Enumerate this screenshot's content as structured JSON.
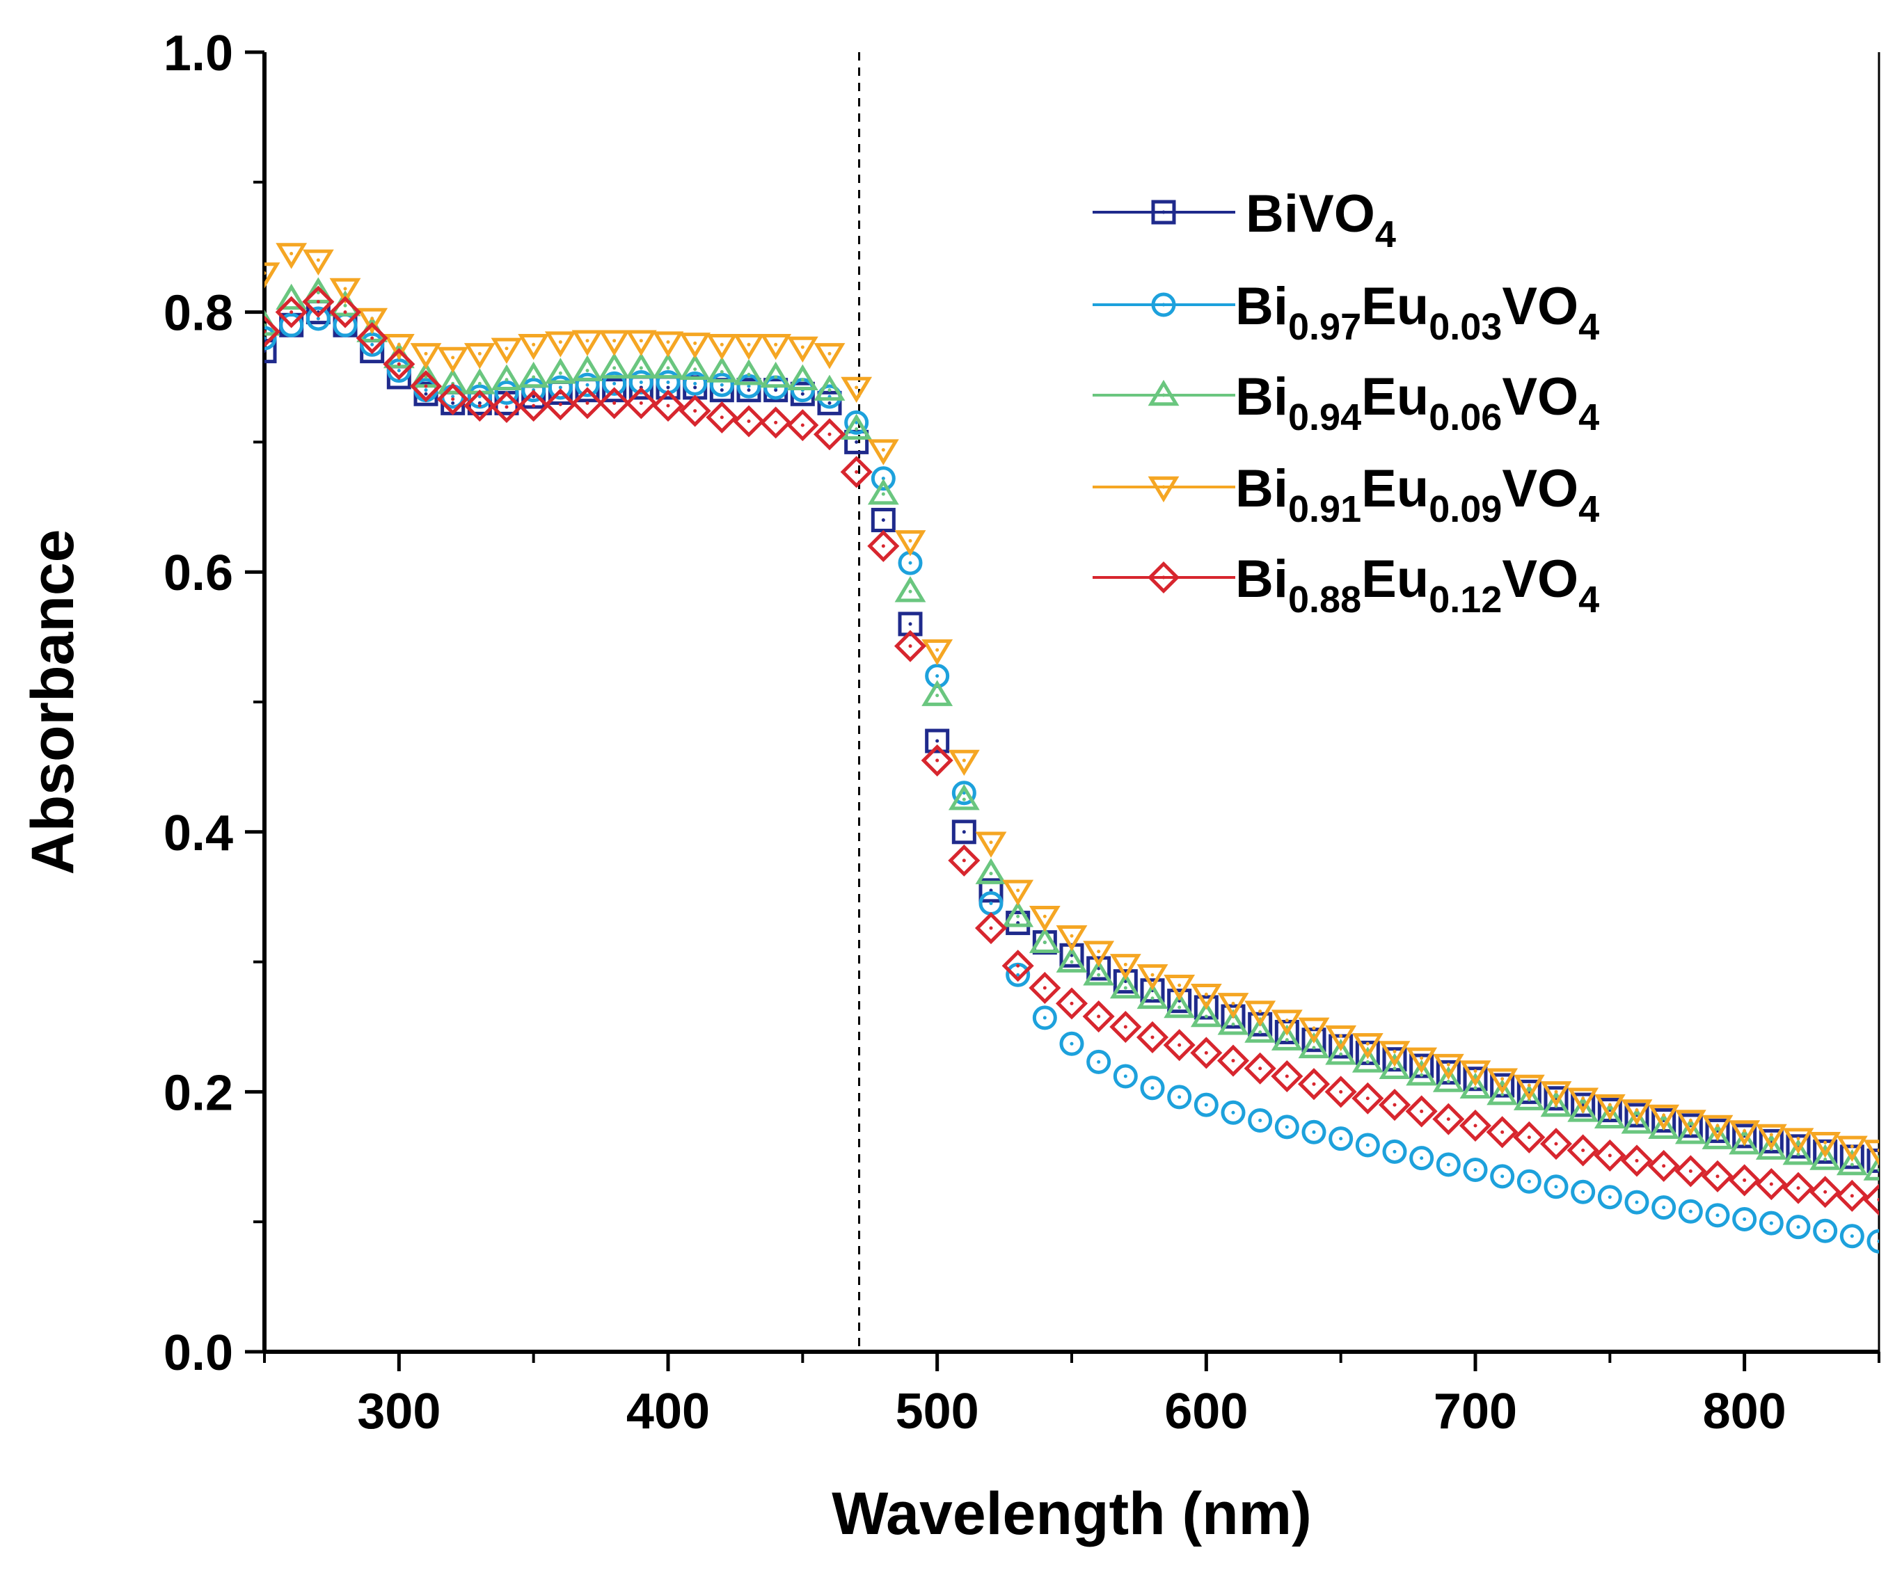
{
  "chart_data": {
    "type": "scatter",
    "title": "",
    "xlabel": "Wavelength (nm)",
    "ylabel": "Absorbance",
    "xlim": [
      250,
      850
    ],
    "ylim": [
      0.0,
      1.0
    ],
    "xticks": [
      300,
      400,
      500,
      600,
      700,
      800
    ],
    "xtick_labels": [
      "300",
      "400",
      "500",
      "600",
      "700",
      "800"
    ],
    "yticks": [
      0.0,
      0.2,
      0.4,
      0.6,
      0.8,
      1.0
    ],
    "ytick_labels": [
      "0.0",
      "0.2",
      "0.4",
      "0.6",
      "0.8",
      "1.0"
    ],
    "grid": false,
    "legend_position": "upper-right",
    "annotation": {
      "type": "vertical-dashed-line",
      "x": 471
    },
    "x": [
      250,
      260,
      270,
      280,
      290,
      300,
      310,
      320,
      330,
      340,
      350,
      360,
      370,
      380,
      390,
      400,
      410,
      420,
      430,
      440,
      450,
      460,
      470,
      480,
      490,
      500,
      510,
      520,
      530,
      540,
      550,
      560,
      570,
      580,
      590,
      600,
      610,
      620,
      630,
      640,
      650,
      660,
      670,
      680,
      690,
      700,
      710,
      720,
      730,
      740,
      750,
      760,
      770,
      780,
      790,
      800,
      810,
      820,
      830,
      840,
      850
    ],
    "series": [
      {
        "name": "BiVO4",
        "label_main": "BiVO",
        "label_sub": "4",
        "color": "#1f2a8c",
        "marker": "square",
        "values": [
          0.77,
          0.79,
          0.8,
          0.79,
          0.77,
          0.75,
          0.737,
          0.73,
          0.73,
          0.73,
          0.735,
          0.738,
          0.74,
          0.74,
          0.742,
          0.742,
          0.742,
          0.74,
          0.74,
          0.74,
          0.737,
          0.73,
          0.7,
          0.64,
          0.56,
          0.47,
          0.4,
          0.355,
          0.33,
          0.315,
          0.305,
          0.295,
          0.285,
          0.278,
          0.27,
          0.265,
          0.258,
          0.252,
          0.246,
          0.24,
          0.235,
          0.23,
          0.225,
          0.22,
          0.215,
          0.21,
          0.205,
          0.2,
          0.195,
          0.19,
          0.186,
          0.182,
          0.178,
          0.174,
          0.17,
          0.166,
          0.162,
          0.158,
          0.154,
          0.15,
          0.147
        ]
      },
      {
        "name": "Bi0.97Eu0.03VO4",
        "label_main": "Bi",
        "label_sub": "0.97",
        "label_main2": "Eu",
        "label_sub2": "0.03",
        "label_main3": "VO",
        "label_sub3": "4",
        "color": "#1da1dc",
        "marker": "circle",
        "values": [
          0.78,
          0.79,
          0.795,
          0.79,
          0.775,
          0.755,
          0.74,
          0.735,
          0.735,
          0.738,
          0.74,
          0.742,
          0.744,
          0.745,
          0.746,
          0.746,
          0.745,
          0.744,
          0.743,
          0.742,
          0.74,
          0.735,
          0.715,
          0.672,
          0.607,
          0.52,
          0.43,
          0.345,
          0.29,
          0.257,
          0.237,
          0.223,
          0.212,
          0.203,
          0.196,
          0.19,
          0.184,
          0.178,
          0.173,
          0.169,
          0.164,
          0.159,
          0.154,
          0.149,
          0.144,
          0.14,
          0.135,
          0.131,
          0.127,
          0.123,
          0.119,
          0.115,
          0.111,
          0.108,
          0.105,
          0.102,
          0.099,
          0.096,
          0.093,
          0.089,
          0.085
        ]
      },
      {
        "name": "Bi0.94Eu0.06VO4",
        "label_main": "Bi",
        "label_sub": "0.94",
        "label_main2": "Eu",
        "label_sub2": "0.06",
        "label_main3": "VO",
        "label_sub3": "4",
        "color": "#6ac67f",
        "marker": "triangle-up",
        "values": [
          0.79,
          0.81,
          0.815,
          0.805,
          0.785,
          0.765,
          0.75,
          0.745,
          0.745,
          0.748,
          0.75,
          0.753,
          0.755,
          0.757,
          0.757,
          0.757,
          0.756,
          0.754,
          0.752,
          0.75,
          0.748,
          0.74,
          0.71,
          0.66,
          0.585,
          0.505,
          0.425,
          0.368,
          0.335,
          0.315,
          0.3,
          0.29,
          0.28,
          0.272,
          0.265,
          0.258,
          0.252,
          0.246,
          0.24,
          0.234,
          0.229,
          0.223,
          0.218,
          0.213,
          0.208,
          0.203,
          0.198,
          0.194,
          0.189,
          0.185,
          0.18,
          0.176,
          0.172,
          0.168,
          0.164,
          0.16,
          0.156,
          0.152,
          0.148,
          0.144,
          0.14
        ]
      },
      {
        "name": "Bi0.91Eu0.09VO4",
        "label_main": "Bi",
        "label_sub": "0.91",
        "label_main2": "Eu",
        "label_sub2": "0.09",
        "label_main3": "VO",
        "label_sub3": "4",
        "color": "#f5a623",
        "marker": "triangle-down",
        "values": [
          0.83,
          0.845,
          0.84,
          0.818,
          0.795,
          0.775,
          0.768,
          0.765,
          0.768,
          0.772,
          0.775,
          0.777,
          0.778,
          0.778,
          0.778,
          0.777,
          0.776,
          0.775,
          0.775,
          0.775,
          0.773,
          0.768,
          0.742,
          0.694,
          0.624,
          0.54,
          0.455,
          0.392,
          0.355,
          0.335,
          0.32,
          0.308,
          0.298,
          0.29,
          0.282,
          0.275,
          0.268,
          0.262,
          0.255,
          0.249,
          0.243,
          0.237,
          0.231,
          0.226,
          0.221,
          0.216,
          0.21,
          0.205,
          0.2,
          0.195,
          0.19,
          0.186,
          0.182,
          0.178,
          0.174,
          0.17,
          0.167,
          0.164,
          0.161,
          0.158,
          0.155
        ]
      },
      {
        "name": "Bi0.88Eu0.12VO4",
        "label_main": "Bi",
        "label_sub": "0.88",
        "label_main2": "Eu",
        "label_sub2": "0.12",
        "label_main3": "VO",
        "label_sub3": "4",
        "color": "#d7262e",
        "marker": "diamond",
        "values": [
          0.785,
          0.8,
          0.808,
          0.8,
          0.78,
          0.76,
          0.743,
          0.733,
          0.728,
          0.727,
          0.728,
          0.729,
          0.73,
          0.73,
          0.73,
          0.728,
          0.724,
          0.719,
          0.716,
          0.715,
          0.713,
          0.706,
          0.677,
          0.62,
          0.543,
          0.455,
          0.378,
          0.326,
          0.297,
          0.28,
          0.268,
          0.258,
          0.25,
          0.242,
          0.236,
          0.23,
          0.224,
          0.218,
          0.212,
          0.206,
          0.2,
          0.195,
          0.19,
          0.185,
          0.179,
          0.174,
          0.169,
          0.165,
          0.16,
          0.155,
          0.151,
          0.147,
          0.143,
          0.139,
          0.135,
          0.132,
          0.129,
          0.126,
          0.123,
          0.12,
          0.117
        ]
      }
    ]
  }
}
